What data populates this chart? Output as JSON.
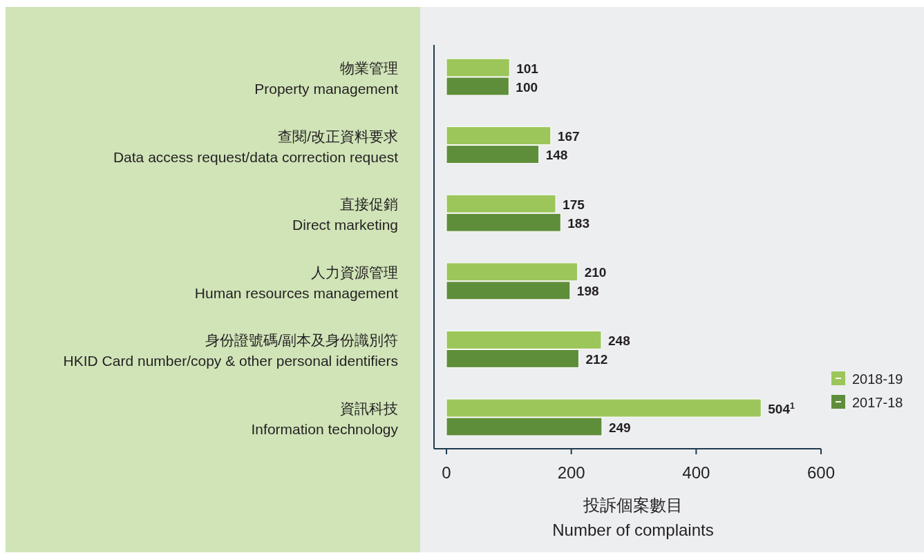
{
  "chart_data": {
    "type": "bar",
    "orientation": "horizontal",
    "categories": [
      "物業管理\nProperty management",
      "查閱/改正資料要求\nData access request/data correction request",
      "直接促銷\nDirect marketing",
      "人力資源管理\nHuman resources management",
      "身份證號碼/副本及身份識別符\nHKID Card number/copy & other personal identifiers",
      "資訊科技\nInformation technology"
    ],
    "series": [
      {
        "name": "2018-19",
        "color": "#9cc65a",
        "values": [
          101,
          167,
          175,
          210,
          248,
          504
        ],
        "value_labels": [
          "101",
          "167",
          "175",
          "210",
          "248",
          "504$^{1}$"
        ]
      },
      {
        "name": "2017-18",
        "color": "#5f8e3a",
        "values": [
          100,
          148,
          183,
          198,
          212,
          249
        ],
        "value_labels": [
          "100",
          "148",
          "183",
          "198",
          "212",
          "249"
        ]
      }
    ],
    "xlim": [
      0,
      600
    ],
    "xticks": [
      0,
      200,
      400,
      600
    ],
    "xlabel": "投訴個案數目\nNumber of complaints",
    "legend": "bottom right",
    "grid": false
  }
}
